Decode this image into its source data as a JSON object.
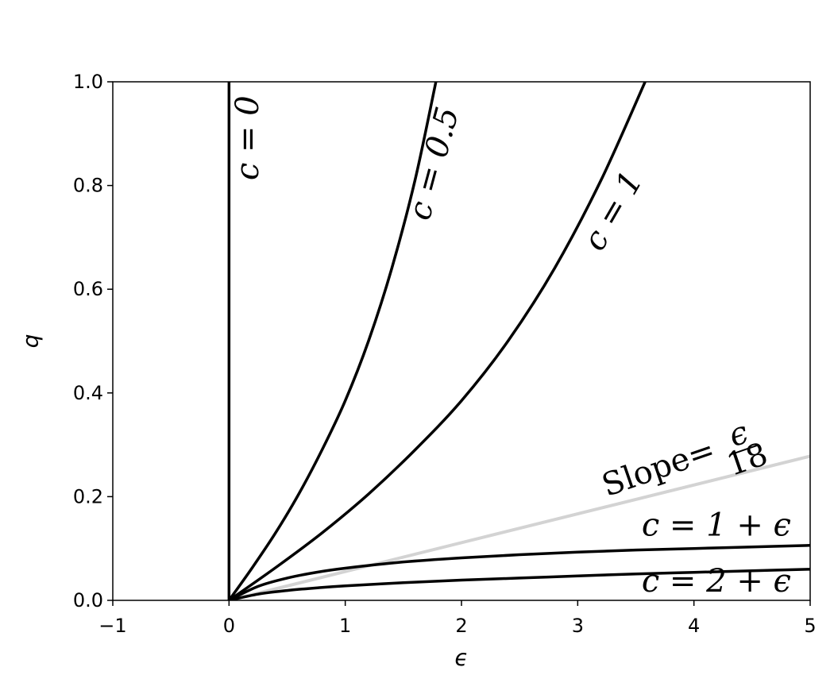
{
  "chart_data": {
    "type": "line",
    "xlabel": "ϵ",
    "ylabel": "q",
    "xlim": [
      -1,
      5
    ],
    "ylim": [
      0,
      1
    ],
    "x_ticks": [
      -1,
      0,
      1,
      2,
      3,
      4,
      5
    ],
    "x_tick_labels": [
      "−1",
      "0",
      "1",
      "2",
      "3",
      "4",
      "5"
    ],
    "y_ticks": [
      0,
      0.2,
      0.4,
      0.6,
      0.8,
      1
    ],
    "y_tick_labels": [
      "0.0",
      "0.2",
      "0.4",
      "0.6",
      "0.8",
      "1.0"
    ],
    "grid": false,
    "series": [
      {
        "name": "c = 0",
        "color": "#000000",
        "x": [
          0,
          0
        ],
        "y": [
          0,
          1
        ]
      },
      {
        "name": "c = 0.5",
        "color": "#000000",
        "x": [
          0,
          0.2,
          0.4,
          0.6,
          0.8,
          1.0,
          1.2,
          1.4,
          1.6,
          1.78
        ],
        "y": [
          0,
          0.063,
          0.13,
          0.205,
          0.29,
          0.385,
          0.5,
          0.64,
          0.81,
          1.0
        ]
      },
      {
        "name": "c = 1",
        "color": "#000000",
        "x": [
          0,
          0.4,
          0.8,
          1.2,
          1.6,
          2.0,
          2.4,
          2.8,
          3.2,
          3.58
        ],
        "y": [
          0,
          0.063,
          0.13,
          0.205,
          0.29,
          0.385,
          0.5,
          0.64,
          0.81,
          1.0
        ]
      },
      {
        "name": "c = 1 + ϵ",
        "color": "#000000",
        "x": [
          0,
          0.25,
          0.5,
          0.75,
          1.0,
          1.5,
          2.0,
          2.5,
          3.0,
          3.5,
          4.0,
          4.5,
          5.0
        ],
        "y": [
          0,
          0.027,
          0.043,
          0.054,
          0.062,
          0.074,
          0.082,
          0.088,
          0.093,
          0.097,
          0.1,
          0.103,
          0.106
        ]
      },
      {
        "name": "c = 2 + ϵ",
        "color": "#000000",
        "x": [
          0,
          0.25,
          0.5,
          0.75,
          1.0,
          1.5,
          2.0,
          2.5,
          3.0,
          3.5,
          4.0,
          4.5,
          5.0
        ],
        "y": [
          0,
          0.012,
          0.019,
          0.024,
          0.028,
          0.034,
          0.039,
          0.043,
          0.047,
          0.051,
          0.054,
          0.057,
          0.06
        ]
      },
      {
        "name": "Slope= ϵ/18",
        "color": "#d3d3d3",
        "x": [
          0,
          5
        ],
        "y": [
          0,
          0.278
        ]
      }
    ],
    "annotations": [
      {
        "text": "c = 0",
        "x": 0.25,
        "y": 0.81,
        "rotation": -90
      },
      {
        "text": "c = 0.5",
        "x": 1.72,
        "y": 0.73,
        "rotation": -75
      },
      {
        "text": "c = 1",
        "x": 3.2,
        "y": 0.67,
        "rotation": -60
      },
      {
        "text": "Slope=",
        "x": 3.25,
        "y": 0.2,
        "rotation": -19
      },
      {
        "frac_num": "ϵ",
        "frac_den": "18",
        "x": 4.43,
        "y": 0.29,
        "rotation": -19
      },
      {
        "text": "c = 1 + ϵ",
        "x": 3.55,
        "y": 0.125,
        "rotation": 0
      },
      {
        "text": "c = 2 + ϵ",
        "x": 3.55,
        "y": 0.017,
        "rotation": 0
      }
    ]
  }
}
